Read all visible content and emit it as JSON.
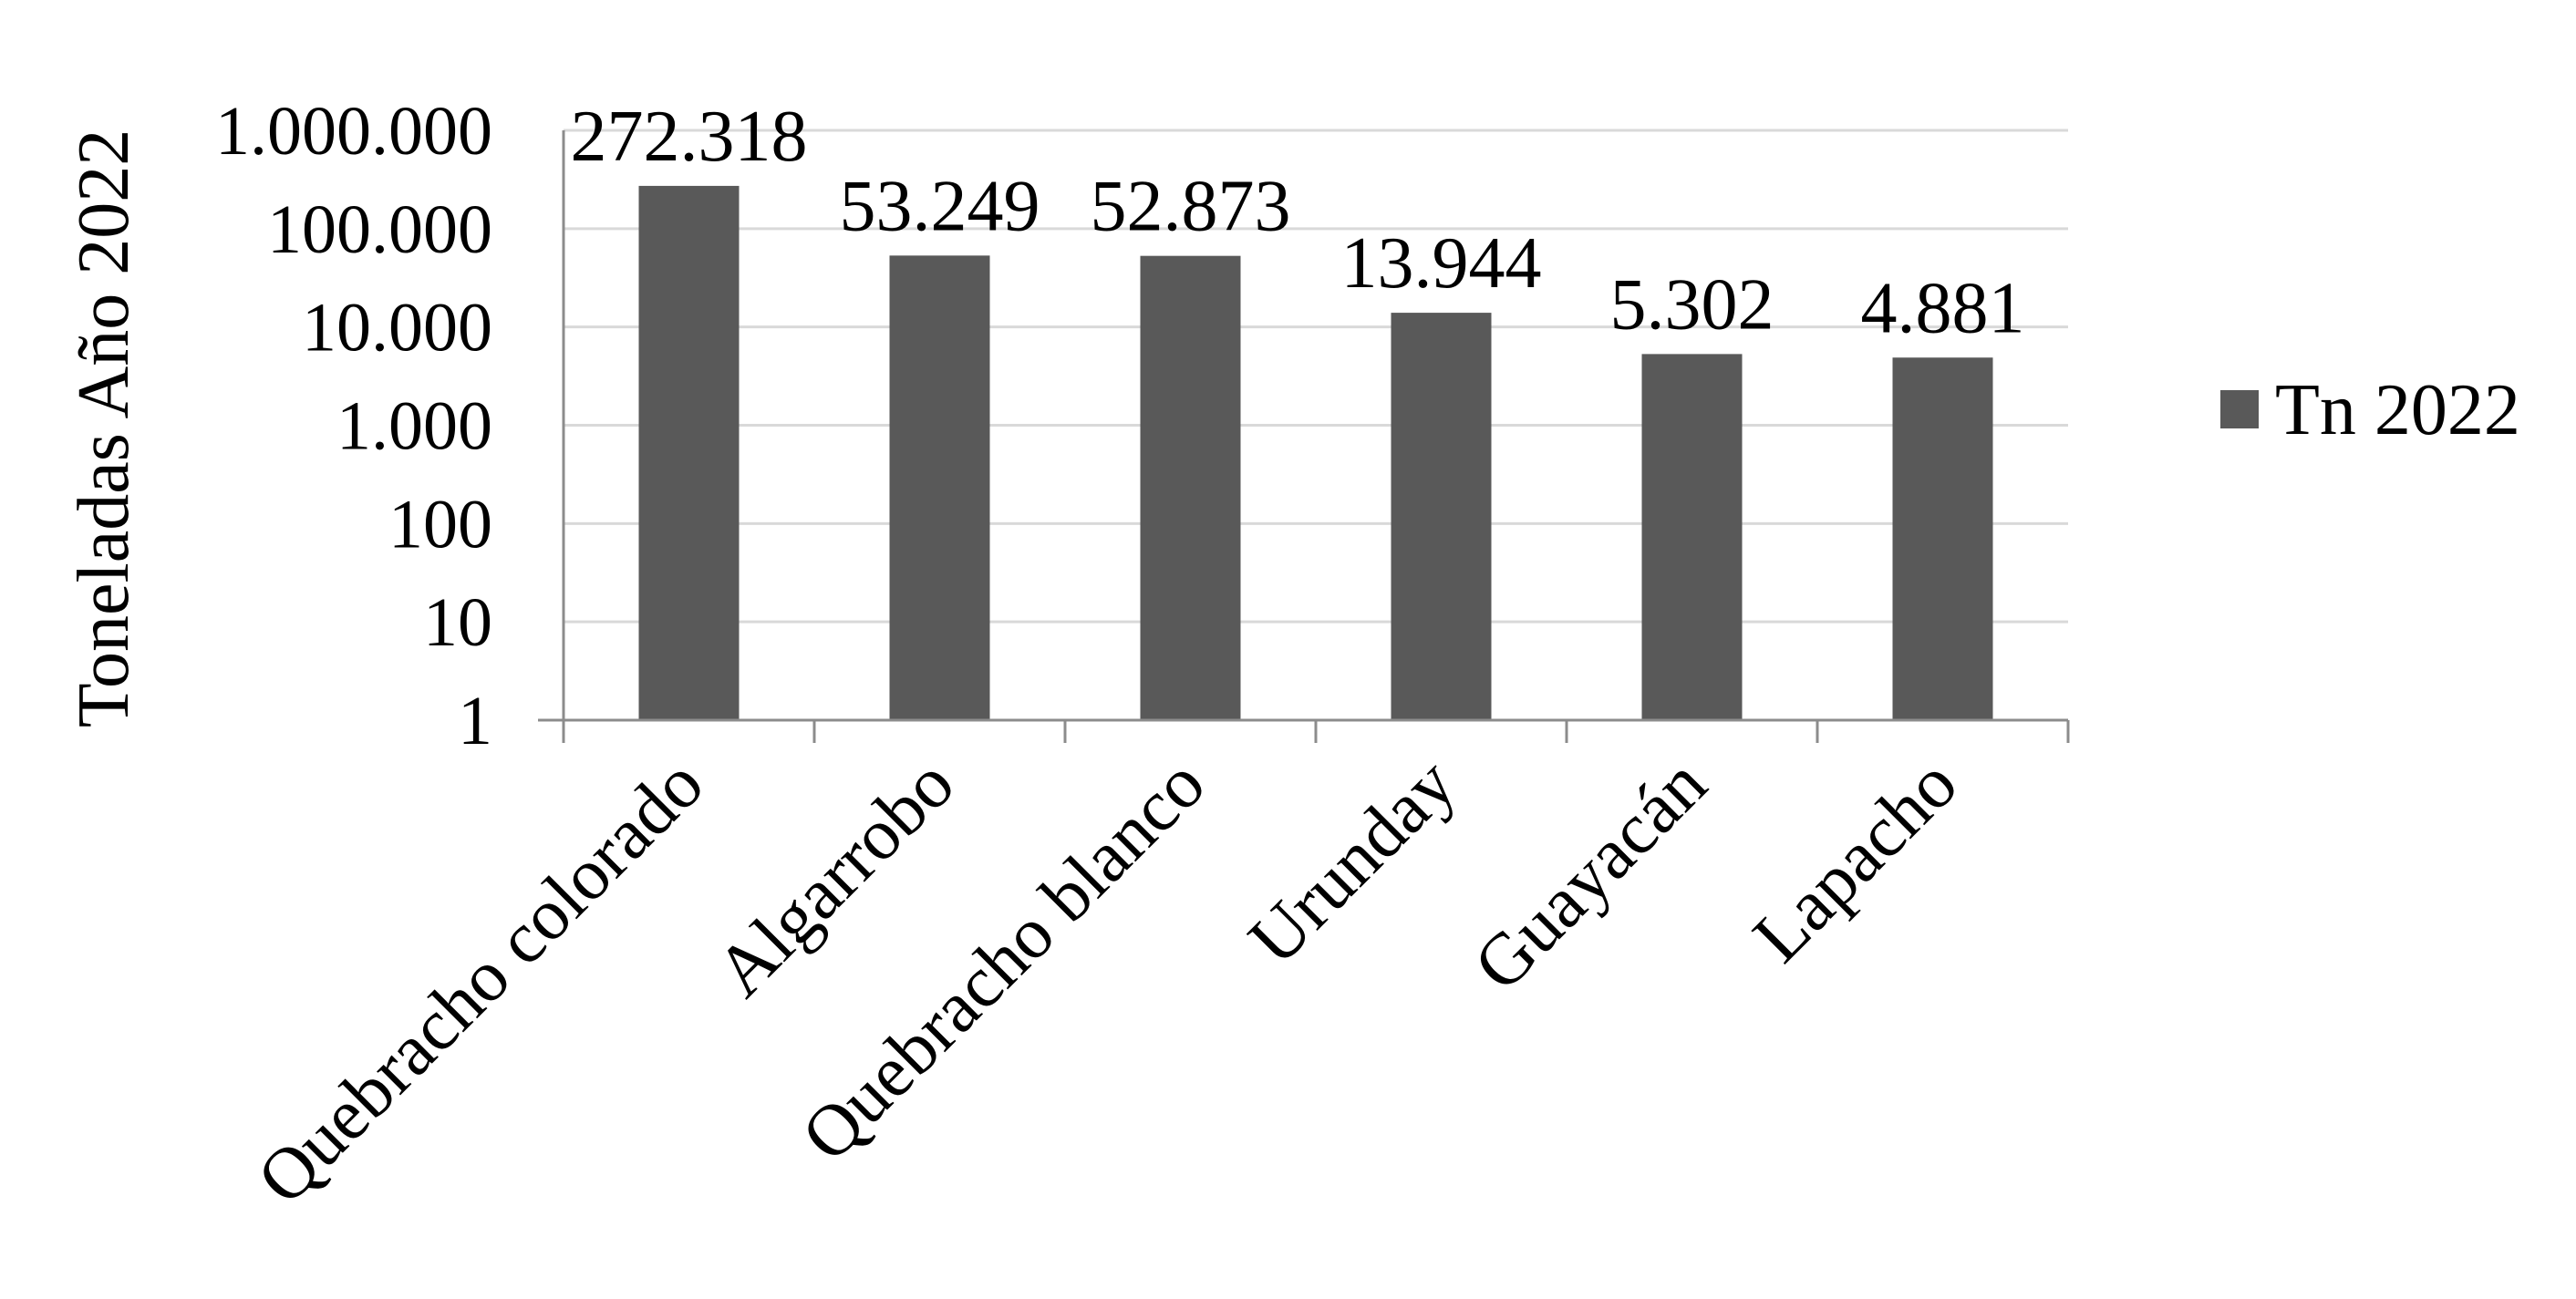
{
  "chart_data": {
    "type": "bar",
    "categories": [
      "Quebracho colorado",
      "Algarrobo",
      "Quebracho blanco",
      "Urunday",
      "Guayacán",
      "Lapacho"
    ],
    "series": [
      {
        "name": "Tn 2022",
        "values": [
          272318,
          53249,
          52873,
          13944,
          5302,
          4881
        ],
        "labels": [
          "272.318",
          "53.249",
          "52.873",
          "13.944",
          "5.302",
          "4.881"
        ],
        "color": "#595959"
      }
    ],
    "ylabel": "Toneladas Año 2022",
    "xlabel": "",
    "yscale": "log",
    "ylim": [
      1,
      1000000
    ],
    "yticks": [
      1,
      10,
      100,
      1000,
      10000,
      100000,
      1000000
    ],
    "ytick_labels": [
      "1",
      "10",
      "100",
      "1.000",
      "10.000",
      "100.000",
      "1.000.000"
    ],
    "grid": true,
    "grid_color": "#d9d9d9",
    "axis_color": "#8c8c8c",
    "legend_position": "right"
  }
}
